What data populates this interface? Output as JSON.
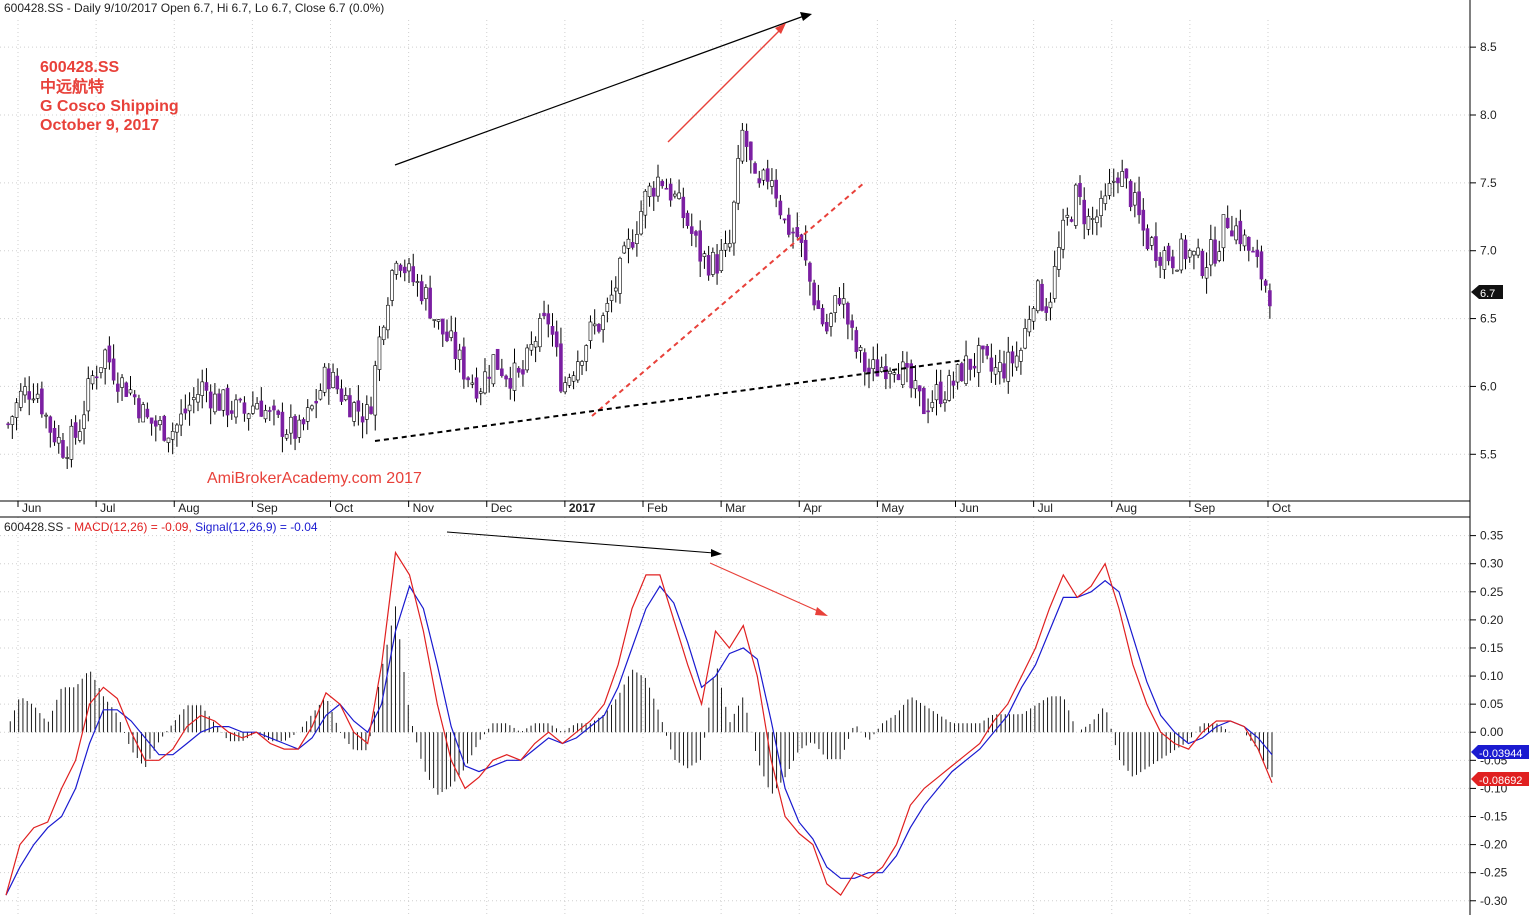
{
  "price_header": "600428.SS - Daily 9/10/2017 Open 6.7, Hi 6.7, Lo 6.7, Close 6.7 (0.0%)",
  "annotation": {
    "ticker": "600428.SS",
    "chinese_name": "中远航特",
    "company": "G Cosco Shipping",
    "date": "October 9, 2017"
  },
  "watermark": "AmiBrokerAcademy.com  2017",
  "macd_header": {
    "prefix": "600428.SS - ",
    "macd": "MACD(12,26) = -0.09, ",
    "signal": "Signal(12,26,9) = -0.04"
  },
  "colors": {
    "candle_body": "#7b1fa2",
    "macd_line": "#e02020",
    "signal_line": "#1a1ad0",
    "trend_black": "#000000",
    "trend_red": "#e8413a",
    "badge_signal_bg": "#1a1ad0",
    "badge_macd_bg": "#e02020"
  },
  "badges": {
    "last_price": "6.7",
    "signal_value": "-0.03944",
    "macd_value": "-0.08692"
  },
  "chart_data": [
    {
      "type": "candlestick",
      "ylim": [
        5.2,
        8.7
      ],
      "yticks": [
        "8.5",
        "8.0",
        "7.5",
        "7.0",
        "6.5",
        "6.0",
        "5.5"
      ],
      "month_labels": [
        "Jun",
        "Jul",
        "Aug",
        "Sep",
        "Oct",
        "Nov",
        "Dec",
        "2017",
        "Feb",
        "Mar",
        "Apr",
        "May",
        "Jun",
        "Jul",
        "Aug",
        "Sep",
        "Oct"
      ],
      "weekly_close": [
        5.72,
        5.95,
        6.0,
        5.7,
        5.55,
        5.65,
        6.05,
        6.25,
        6.05,
        5.95,
        5.75,
        5.7,
        5.68,
        5.85,
        6.0,
        5.9,
        5.85,
        5.8,
        5.9,
        5.75,
        5.7,
        5.65,
        5.85,
        6.1,
        5.95,
        5.85,
        5.78,
        6.5,
        7.0,
        6.8,
        6.7,
        6.45,
        6.3,
        6.1,
        6.0,
        6.2,
        6.1,
        6.05,
        6.35,
        6.5,
        6.0,
        6.2,
        6.4,
        6.5,
        6.8,
        7.1,
        7.4,
        7.55,
        7.4,
        7.2,
        6.95,
        6.9,
        7.0,
        7.9,
        7.4,
        7.6,
        7.2,
        7.1,
        6.7,
        6.4,
        6.7,
        6.3,
        6.1,
        6.15,
        6.2,
        6.0,
        5.85,
        5.95,
        6.0,
        6.15,
        6.2,
        6.1,
        6.15,
        6.25,
        6.7,
        6.6,
        7.1,
        7.4,
        7.2,
        7.3,
        7.6,
        7.4,
        7.1,
        7.0,
        6.95,
        7.0,
        6.9,
        7.0,
        7.25,
        7.1,
        6.9,
        6.7
      ]
    },
    {
      "type": "line",
      "ylim": [
        -0.32,
        0.36
      ],
      "yticks": [
        "0.35",
        "0.30",
        "0.25",
        "0.20",
        "0.15",
        "0.10",
        "0.05",
        "0.00",
        "-0.05",
        "-0.10",
        "-0.15",
        "-0.20",
        "-0.25",
        "-0.30"
      ],
      "series": [
        {
          "name": "MACD(12,26)",
          "values": [
            -0.29,
            -0.2,
            -0.17,
            -0.16,
            -0.1,
            -0.05,
            0.05,
            0.08,
            0.06,
            0.0,
            -0.05,
            -0.05,
            -0.03,
            0.01,
            0.03,
            0.02,
            0.0,
            -0.01,
            0.0,
            -0.02,
            -0.03,
            -0.03,
            0.01,
            0.07,
            0.05,
            0.0,
            -0.02,
            0.12,
            0.32,
            0.28,
            0.18,
            0.05,
            -0.05,
            -0.1,
            -0.08,
            -0.05,
            -0.04,
            -0.05,
            -0.02,
            0.0,
            -0.02,
            0.0,
            0.02,
            0.05,
            0.12,
            0.22,
            0.28,
            0.28,
            0.2,
            0.12,
            0.05,
            0.18,
            0.15,
            0.19,
            0.1,
            -0.05,
            -0.15,
            -0.18,
            -0.2,
            -0.27,
            -0.29,
            -0.25,
            -0.26,
            -0.24,
            -0.2,
            -0.13,
            -0.1,
            -0.08,
            -0.06,
            -0.04,
            -0.02,
            0.02,
            0.05,
            0.1,
            0.15,
            0.22,
            0.28,
            0.24,
            0.26,
            0.3,
            0.22,
            0.12,
            0.05,
            0.0,
            -0.02,
            -0.03,
            0.0,
            0.02,
            0.02,
            0.01,
            -0.03,
            -0.09
          ]
        },
        {
          "name": "Signal(12,26,9)",
          "values": [
            -0.29,
            -0.24,
            -0.2,
            -0.17,
            -0.15,
            -0.1,
            -0.02,
            0.04,
            0.04,
            0.02,
            -0.01,
            -0.04,
            -0.04,
            -0.02,
            0.0,
            0.01,
            0.01,
            0.0,
            0.0,
            -0.01,
            -0.02,
            -0.03,
            -0.01,
            0.03,
            0.05,
            0.02,
            0.0,
            0.05,
            0.18,
            0.26,
            0.22,
            0.12,
            0.01,
            -0.06,
            -0.07,
            -0.06,
            -0.05,
            -0.05,
            -0.03,
            -0.01,
            -0.02,
            -0.01,
            0.01,
            0.03,
            0.08,
            0.15,
            0.22,
            0.26,
            0.23,
            0.16,
            0.08,
            0.1,
            0.14,
            0.15,
            0.13,
            0.02,
            -0.1,
            -0.16,
            -0.19,
            -0.24,
            -0.26,
            -0.26,
            -0.25,
            -0.25,
            -0.22,
            -0.17,
            -0.13,
            -0.1,
            -0.07,
            -0.05,
            -0.03,
            0.0,
            0.03,
            0.08,
            0.12,
            0.18,
            0.24,
            0.24,
            0.25,
            0.27,
            0.25,
            0.17,
            0.09,
            0.03,
            0.0,
            -0.02,
            -0.01,
            0.01,
            0.02,
            0.01,
            -0.01,
            -0.04
          ]
        }
      ]
    }
  ]
}
